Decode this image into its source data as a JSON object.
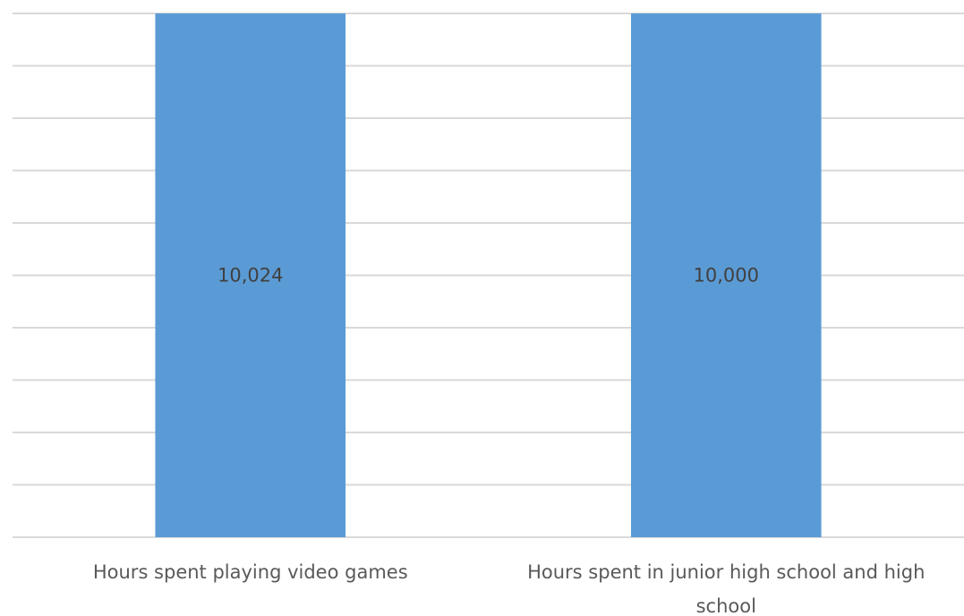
{
  "chart_data": {
    "type": "bar",
    "categories": [
      [
        "Hours spent playing video games"
      ],
      [
        "Hours spent in junior high school and high",
        "school"
      ]
    ],
    "values": [
      10024,
      10000
    ],
    "data_labels": [
      "10,024",
      "10,000"
    ],
    "ylim": [
      0,
      10000
    ],
    "grid": true,
    "gridline_count": 11,
    "bar_color": "#5b9bd5",
    "gridline_color": "#d9d9d9",
    "title": "",
    "xlabel": "",
    "ylabel": ""
  }
}
